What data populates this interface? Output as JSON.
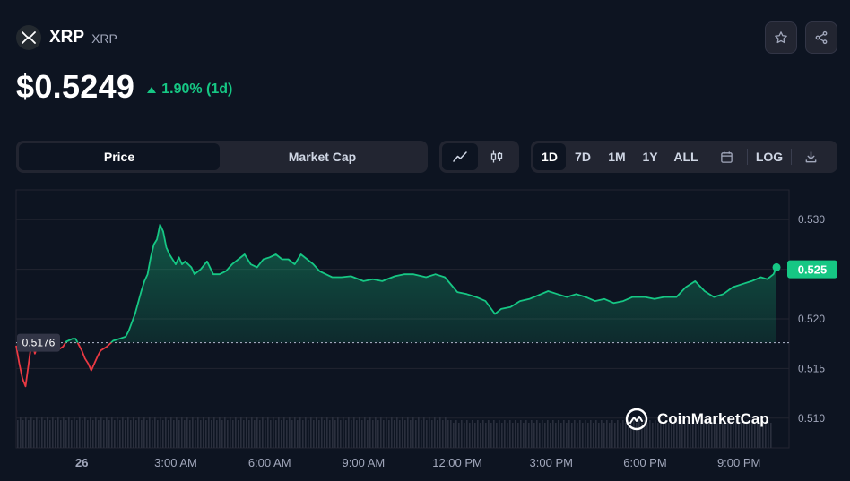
{
  "coin": {
    "name": "XRP",
    "symbol": "XRP",
    "logo_icon": "xrp-logo-icon"
  },
  "price": {
    "value": "$0.5249",
    "change": "1.90% (1d)",
    "direction": "up"
  },
  "actions": {
    "watchlist_icon": "star-icon",
    "share_icon": "share-icon"
  },
  "toggle": {
    "price_label": "Price",
    "market_cap_label": "Market Cap",
    "active": "Price"
  },
  "chart_type": {
    "line_icon": "line-chart-icon",
    "candle_icon": "candlestick-icon",
    "active": "line"
  },
  "ranges": {
    "items": [
      "1D",
      "7D",
      "1M",
      "1Y",
      "ALL"
    ],
    "active": "1D",
    "calendar_icon": "calendar-icon",
    "log_label": "LOG",
    "download_icon": "download-icon"
  },
  "watermark": "CoinMarketCap",
  "colors": {
    "up": "#16c784",
    "down": "#ea3943",
    "background": "#0d1421"
  },
  "chart_data": {
    "type": "line",
    "open_price_label": "0.5176",
    "current_price_label": "0.525",
    "open_price": 0.5176,
    "ylim": [
      0.507,
      0.533
    ],
    "yticks": [
      "0.530",
      "0.525",
      "0.520",
      "0.515",
      "0.510"
    ],
    "xticks": [
      "26",
      "3:00 AM",
      "6:00 AM",
      "9:00 AM",
      "12:00 PM",
      "3:00 PM",
      "6:00 PM",
      "9:00 PM"
    ],
    "xtick_hours": [
      0,
      3,
      6,
      9,
      12,
      15,
      18,
      21
    ],
    "x_hours": [
      -2.1,
      -2.0,
      -1.9,
      -1.8,
      -1.7,
      -1.6,
      -1.5,
      -1.4,
      -1.3,
      -1.2,
      -1.0,
      -0.8,
      -0.6,
      -0.5,
      -0.3,
      -0.2,
      0.0,
      0.1,
      0.2,
      0.3,
      0.5,
      0.6,
      0.8,
      1.0,
      1.2,
      1.4,
      1.5,
      1.7,
      1.9,
      2.0,
      2.1,
      2.2,
      2.3,
      2.4,
      2.5,
      2.6,
      2.7,
      2.8,
      3.0,
      3.1,
      3.2,
      3.3,
      3.5,
      3.6,
      3.8,
      4.0,
      4.2,
      4.4,
      4.6,
      4.8,
      5.0,
      5.2,
      5.4,
      5.6,
      5.8,
      6.0,
      6.2,
      6.4,
      6.6,
      6.8,
      7.0,
      7.2,
      7.4,
      7.6,
      7.8,
      8.0,
      8.3,
      8.6,
      9.0,
      9.3,
      9.6,
      10.0,
      10.3,
      10.6,
      11.0,
      11.3,
      11.6,
      12.0,
      12.3,
      12.6,
      12.9,
      13.2,
      13.4,
      13.7,
      14.0,
      14.3,
      14.6,
      14.9,
      15.2,
      15.5,
      15.8,
      16.1,
      16.4,
      16.7,
      17.0,
      17.3,
      17.6,
      18.0,
      18.3,
      18.6,
      19.0,
      19.3,
      19.6,
      19.9,
      20.2,
      20.5,
      20.8,
      21.1,
      21.4,
      21.7,
      21.9,
      22.1,
      22.2
    ],
    "values": [
      0.5173,
      0.5155,
      0.514,
      0.5132,
      0.5155,
      0.5178,
      0.5165,
      0.5175,
      0.5168,
      0.5175,
      0.517,
      0.5168,
      0.5172,
      0.5177,
      0.518,
      0.518,
      0.5168,
      0.516,
      0.5155,
      0.5148,
      0.5162,
      0.5168,
      0.5172,
      0.5178,
      0.518,
      0.5182,
      0.5188,
      0.5205,
      0.5228,
      0.5238,
      0.5245,
      0.5262,
      0.5275,
      0.528,
      0.5295,
      0.5288,
      0.5272,
      0.5265,
      0.5255,
      0.5262,
      0.5255,
      0.5258,
      0.5252,
      0.5245,
      0.525,
      0.5258,
      0.5245,
      0.5245,
      0.5248,
      0.5255,
      0.526,
      0.5265,
      0.5255,
      0.5252,
      0.526,
      0.5262,
      0.5265,
      0.526,
      0.526,
      0.5255,
      0.5265,
      0.526,
      0.5255,
      0.5248,
      0.5245,
      0.5242,
      0.5242,
      0.5243,
      0.5238,
      0.524,
      0.5238,
      0.5243,
      0.5245,
      0.5245,
      0.5242,
      0.5245,
      0.5242,
      0.5227,
      0.5225,
      0.5222,
      0.5218,
      0.5205,
      0.521,
      0.5212,
      0.5218,
      0.522,
      0.5224,
      0.5228,
      0.5225,
      0.5222,
      0.5225,
      0.5222,
      0.5218,
      0.522,
      0.5216,
      0.5218,
      0.5222,
      0.5222,
      0.522,
      0.5222,
      0.5222,
      0.5232,
      0.5238,
      0.5228,
      0.5222,
      0.5225,
      0.5232,
      0.5235,
      0.5238,
      0.5242,
      0.524,
      0.5245,
      0.5252
    ]
  }
}
